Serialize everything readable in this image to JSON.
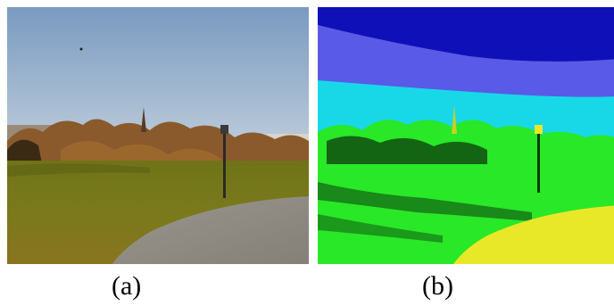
{
  "figure": {
    "panels": [
      {
        "caption": "(a)",
        "kind": "photograph",
        "colors": {
          "sky_top": "#7a9ac0",
          "sky_bottom": "#b9c9d9",
          "trees": "#8a5a2c",
          "lawn": "#7a7a1c",
          "path": "#8e8a84"
        }
      },
      {
        "caption": "(b)",
        "kind": "segmentation-map",
        "colors": {
          "class_1": "#1010b8",
          "class_2": "#5a5ae8",
          "class_3": "#18d8e8",
          "class_4": "#28e828",
          "class_5": "#e8e828",
          "class_6": "#0c3a0c"
        }
      }
    ]
  }
}
